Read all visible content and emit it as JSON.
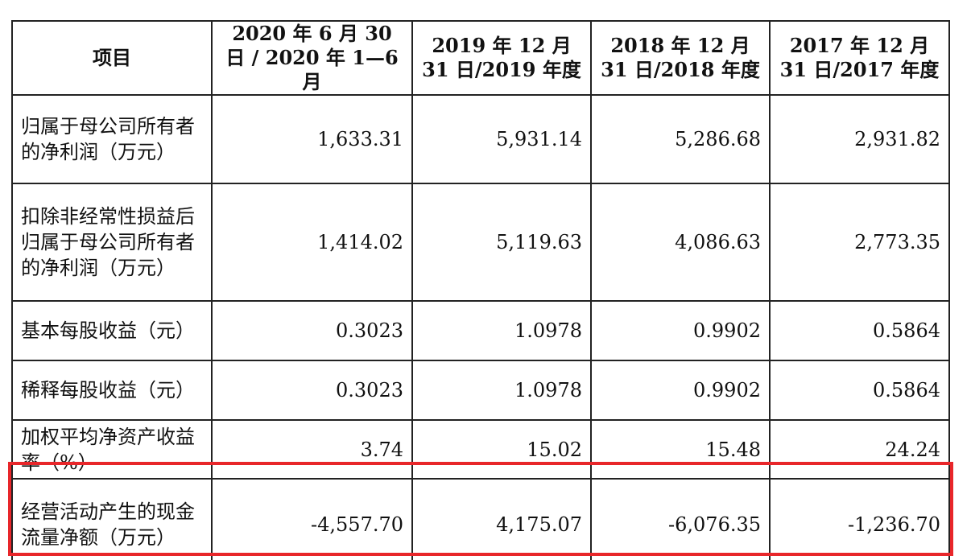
{
  "table": {
    "headers": [
      "项目",
      "2020 年 6 月 30 日 / 2020 年 1—6 月",
      "2019 年 12 月 31 日/2019 年度",
      "2018 年 12 月 31 日/2018 年度",
      "2017 年 12 月 31 日/2017 年度"
    ],
    "rows": [
      {
        "label": "归属于母公司所有者的净利润（万元）",
        "values": [
          "1,633.31",
          "5,931.14",
          "5,286.68",
          "2,931.82"
        ]
      },
      {
        "label": "扣除非经常性损益后归属于母公司所有者的净利润（万元）",
        "values": [
          "1,414.02",
          "5,119.63",
          "4,086.63",
          "2,773.35"
        ]
      },
      {
        "label": "基本每股收益（元）",
        "values": [
          "0.3023",
          "1.0978",
          "0.9902",
          "0.5864"
        ]
      },
      {
        "label": "稀释每股收益（元）",
        "values": [
          "0.3023",
          "1.0978",
          "0.9902",
          "0.5864"
        ]
      },
      {
        "label": "加权平均净资产收益率（%）",
        "values": [
          "3.74",
          "15.02",
          "15.48",
          "24.24"
        ]
      },
      {
        "label": "经营活动产生的现金流量净额（万元）",
        "values": [
          "-4,557.70",
          "4,175.07",
          "-6,076.35",
          "-1,236.70"
        ]
      }
    ]
  },
  "highlight": {
    "color": "#e8262a",
    "row_index": 5
  }
}
